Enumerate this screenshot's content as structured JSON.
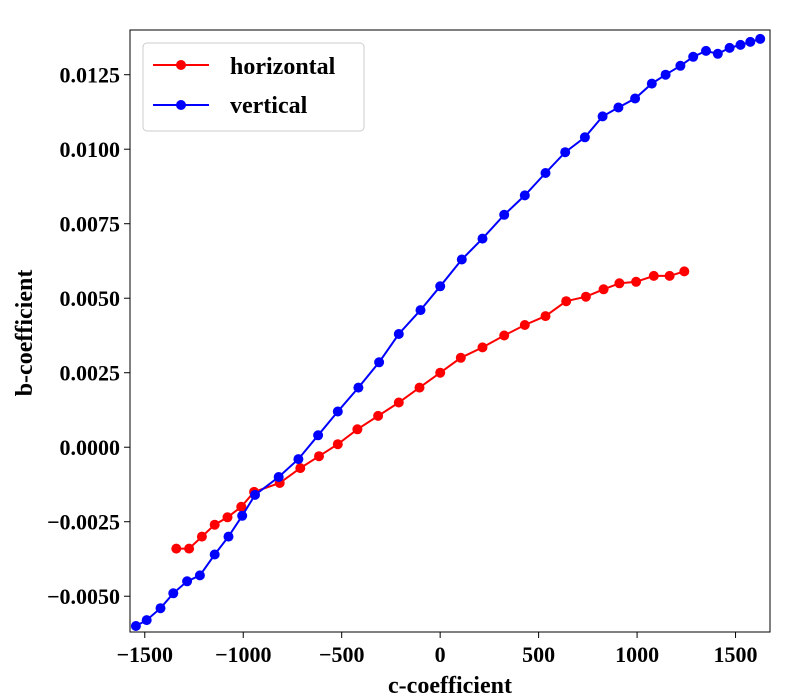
{
  "chart_data": {
    "type": "line",
    "xlabel": "c-coefficient",
    "ylabel": "b-coefficient",
    "xlim": [
      -1575,
      1675
    ],
    "ylim": [
      -0.0062,
      0.014
    ],
    "xticks": [
      -1500,
      -1000,
      -500,
      0,
      500,
      1000,
      1500
    ],
    "xtick_labels": [
      "−1500",
      "−1000",
      "−500",
      "0",
      "500",
      "1000",
      "1500"
    ],
    "yticks": [
      -0.005,
      -0.0025,
      0.0,
      0.0025,
      0.005,
      0.0075,
      0.01,
      0.0125
    ],
    "ytick_labels": [
      "−0.0050",
      "−0.0025",
      "0.0000",
      "0.0025",
      "0.0050",
      "0.0075",
      "0.0100",
      "0.0125"
    ],
    "grid": false,
    "legend_position": "top-left",
    "series": [
      {
        "name": "horizontal",
        "color": "#ff0000",
        "x": [
          -1340,
          -1275,
          -1210,
          -1145,
          -1080,
          -1010,
          -945,
          -815,
          -710,
          -615,
          -520,
          -420,
          -315,
          -210,
          -105,
          0,
          105,
          215,
          325,
          430,
          535,
          640,
          740,
          830,
          910,
          995,
          1085,
          1165,
          1240
        ],
        "y": [
          -0.0034,
          -0.0034,
          -0.003,
          -0.0026,
          -0.00235,
          -0.002,
          -0.0015,
          -0.0012,
          -0.0007,
          -0.0003,
          0.0001,
          0.0006,
          0.00105,
          0.0015,
          0.002,
          0.0025,
          0.003,
          0.00335,
          0.00375,
          0.0041,
          0.0044,
          0.0049,
          0.00505,
          0.0053,
          0.0055,
          0.00555,
          0.00575,
          0.00575,
          0.0059
        ]
      },
      {
        "name": "vertical",
        "color": "#0000ff",
        "x": [
          -1545,
          -1490,
          -1420,
          -1355,
          -1285,
          -1220,
          -1145,
          -1075,
          -1005,
          -940,
          -820,
          -720,
          -620,
          -520,
          -415,
          -310,
          -210,
          -100,
          0,
          110,
          215,
          325,
          430,
          535,
          635,
          735,
          825,
          905,
          990,
          1075,
          1145,
          1220,
          1285,
          1350,
          1410,
          1470,
          1525,
          1575,
          1625
        ],
        "y": [
          -0.006,
          -0.0058,
          -0.0054,
          -0.0049,
          -0.0045,
          -0.0043,
          -0.0036,
          -0.003,
          -0.0023,
          -0.0016,
          -0.001,
          -0.0004,
          0.0004,
          0.0012,
          0.002,
          0.00285,
          0.0038,
          0.0046,
          0.0054,
          0.0063,
          0.007,
          0.0078,
          0.00845,
          0.0092,
          0.0099,
          0.0104,
          0.0111,
          0.0114,
          0.0117,
          0.0122,
          0.0125,
          0.0128,
          0.0131,
          0.0133,
          0.0132,
          0.0134,
          0.0135,
          0.0136,
          0.0137
        ]
      }
    ]
  }
}
